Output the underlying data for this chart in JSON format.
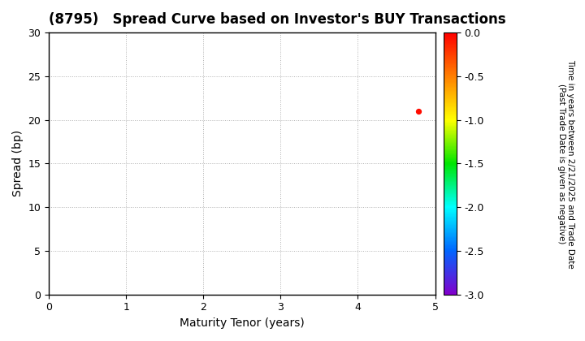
{
  "title": "(8795)   Spread Curve based on Investor's BUY Transactions",
  "xlabel": "Maturity Tenor (years)",
  "ylabel": "Spread (bp)",
  "colorbar_label": "Time in years between 2/21/2025 and Trade Date\n(Past Trade Date is given as negative)",
  "xlim": [
    0,
    5
  ],
  "ylim": [
    0,
    30
  ],
  "xticks": [
    0,
    1,
    2,
    3,
    4,
    5
  ],
  "yticks": [
    0,
    5,
    10,
    15,
    20,
    25,
    30
  ],
  "cmap_min": -3.0,
  "cmap_max": 0.0,
  "cbar_ticks": [
    0.0,
    -0.5,
    -1.0,
    -1.5,
    -2.0,
    -2.5,
    -3.0
  ],
  "scatter_x": [
    4.78
  ],
  "scatter_y": [
    21.0
  ],
  "scatter_c": [
    -0.05
  ],
  "scatter_size": 18,
  "background_color": "#ffffff",
  "grid_color": "#b0b0b0",
  "title_fontsize": 12,
  "axis_label_fontsize": 10,
  "tick_fontsize": 9,
  "cbar_label_fontsize": 7.5
}
